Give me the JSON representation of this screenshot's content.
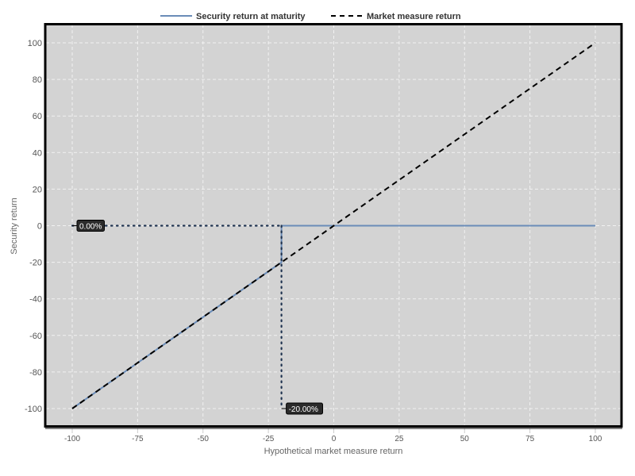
{
  "chart_data": {
    "type": "line",
    "title": "",
    "xlabel": "Hypothetical market measure return",
    "ylabel": "Security return",
    "xlim": [
      -110,
      110
    ],
    "ylim": [
      -110,
      110
    ],
    "xticks": [
      -100,
      -75,
      -50,
      -25,
      0,
      25,
      50,
      75,
      100
    ],
    "yticks": [
      -100,
      -80,
      -60,
      -40,
      -20,
      0,
      20,
      40,
      60,
      80,
      100
    ],
    "grid": true,
    "legend_placement": "top-center",
    "plot_background": "#d3d3d3",
    "series": [
      {
        "name": "Security return at maturity",
        "style": "solid",
        "color": "#6a8cb8",
        "x": [
          -100,
          -20,
          -20,
          100
        ],
        "y": [
          -100,
          -20,
          0,
          0
        ]
      },
      {
        "name": "Market measure return",
        "style": "dashed",
        "color": "#000000",
        "x": [
          -100,
          100
        ],
        "y": [
          -100,
          100
        ]
      }
    ],
    "annotations": [
      {
        "text": "0.00%",
        "line": "horizontal",
        "value": 0,
        "from": -100,
        "to": -20
      },
      {
        "text": "-20.00%",
        "line": "vertical",
        "value": -20,
        "from": 0,
        "to": -100
      }
    ]
  }
}
